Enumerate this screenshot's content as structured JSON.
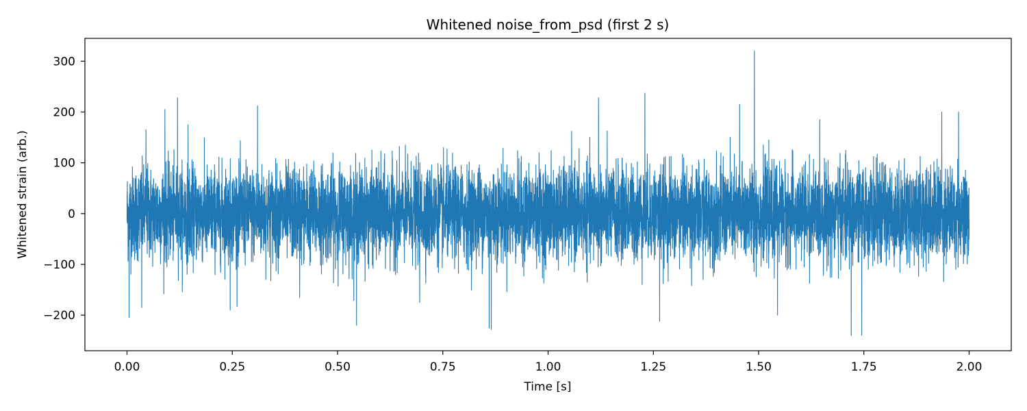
{
  "chart_data": {
    "type": "line",
    "title": "Whitened noise_from_psd (first 2 s)",
    "xlabel": "Time [s]",
    "ylabel": "Whitened strain (arb.)",
    "xlim": [
      -0.1,
      2.1
    ],
    "ylim": [
      -270,
      345
    ],
    "x_ticks": [
      0.0,
      0.25,
      0.5,
      0.75,
      1.0,
      1.25,
      1.5,
      1.75,
      2.0
    ],
    "x_tick_labels": [
      "0.00",
      "0.25",
      "0.50",
      "0.75",
      "1.00",
      "1.25",
      "1.50",
      "1.75",
      "2.00"
    ],
    "y_ticks": [
      -200,
      -100,
      0,
      100,
      200,
      300
    ],
    "y_tick_labels": [
      "−200",
      "−100",
      "0",
      "100",
      "200",
      "300"
    ],
    "grid": false,
    "series": [
      {
        "color": "#1f77b4",
        "x_range": [
          0.0,
          2.0
        ],
        "typical_envelope": [
          -100,
          100
        ],
        "notable_points": [
          {
            "x": 0.005,
            "y": -205
          },
          {
            "x": 0.035,
            "y": -185
          },
          {
            "x": 0.045,
            "y": 165
          },
          {
            "x": 0.09,
            "y": 205
          },
          {
            "x": 0.12,
            "y": 228
          },
          {
            "x": 0.145,
            "y": 175
          },
          {
            "x": 0.245,
            "y": -190
          },
          {
            "x": 0.31,
            "y": 212
          },
          {
            "x": 0.41,
            "y": -165
          },
          {
            "x": 0.545,
            "y": -220
          },
          {
            "x": 0.695,
            "y": -175
          },
          {
            "x": 0.86,
            "y": -225
          },
          {
            "x": 0.865,
            "y": -228
          },
          {
            "x": 1.12,
            "y": 228
          },
          {
            "x": 1.23,
            "y": 237
          },
          {
            "x": 1.265,
            "y": -212
          },
          {
            "x": 1.455,
            "y": 215
          },
          {
            "x": 1.49,
            "y": 320
          },
          {
            "x": 1.545,
            "y": -200
          },
          {
            "x": 1.72,
            "y": -240
          },
          {
            "x": 1.745,
            "y": -240
          },
          {
            "x": 1.935,
            "y": 200
          },
          {
            "x": 1.975,
            "y": 200
          }
        ]
      }
    ]
  }
}
